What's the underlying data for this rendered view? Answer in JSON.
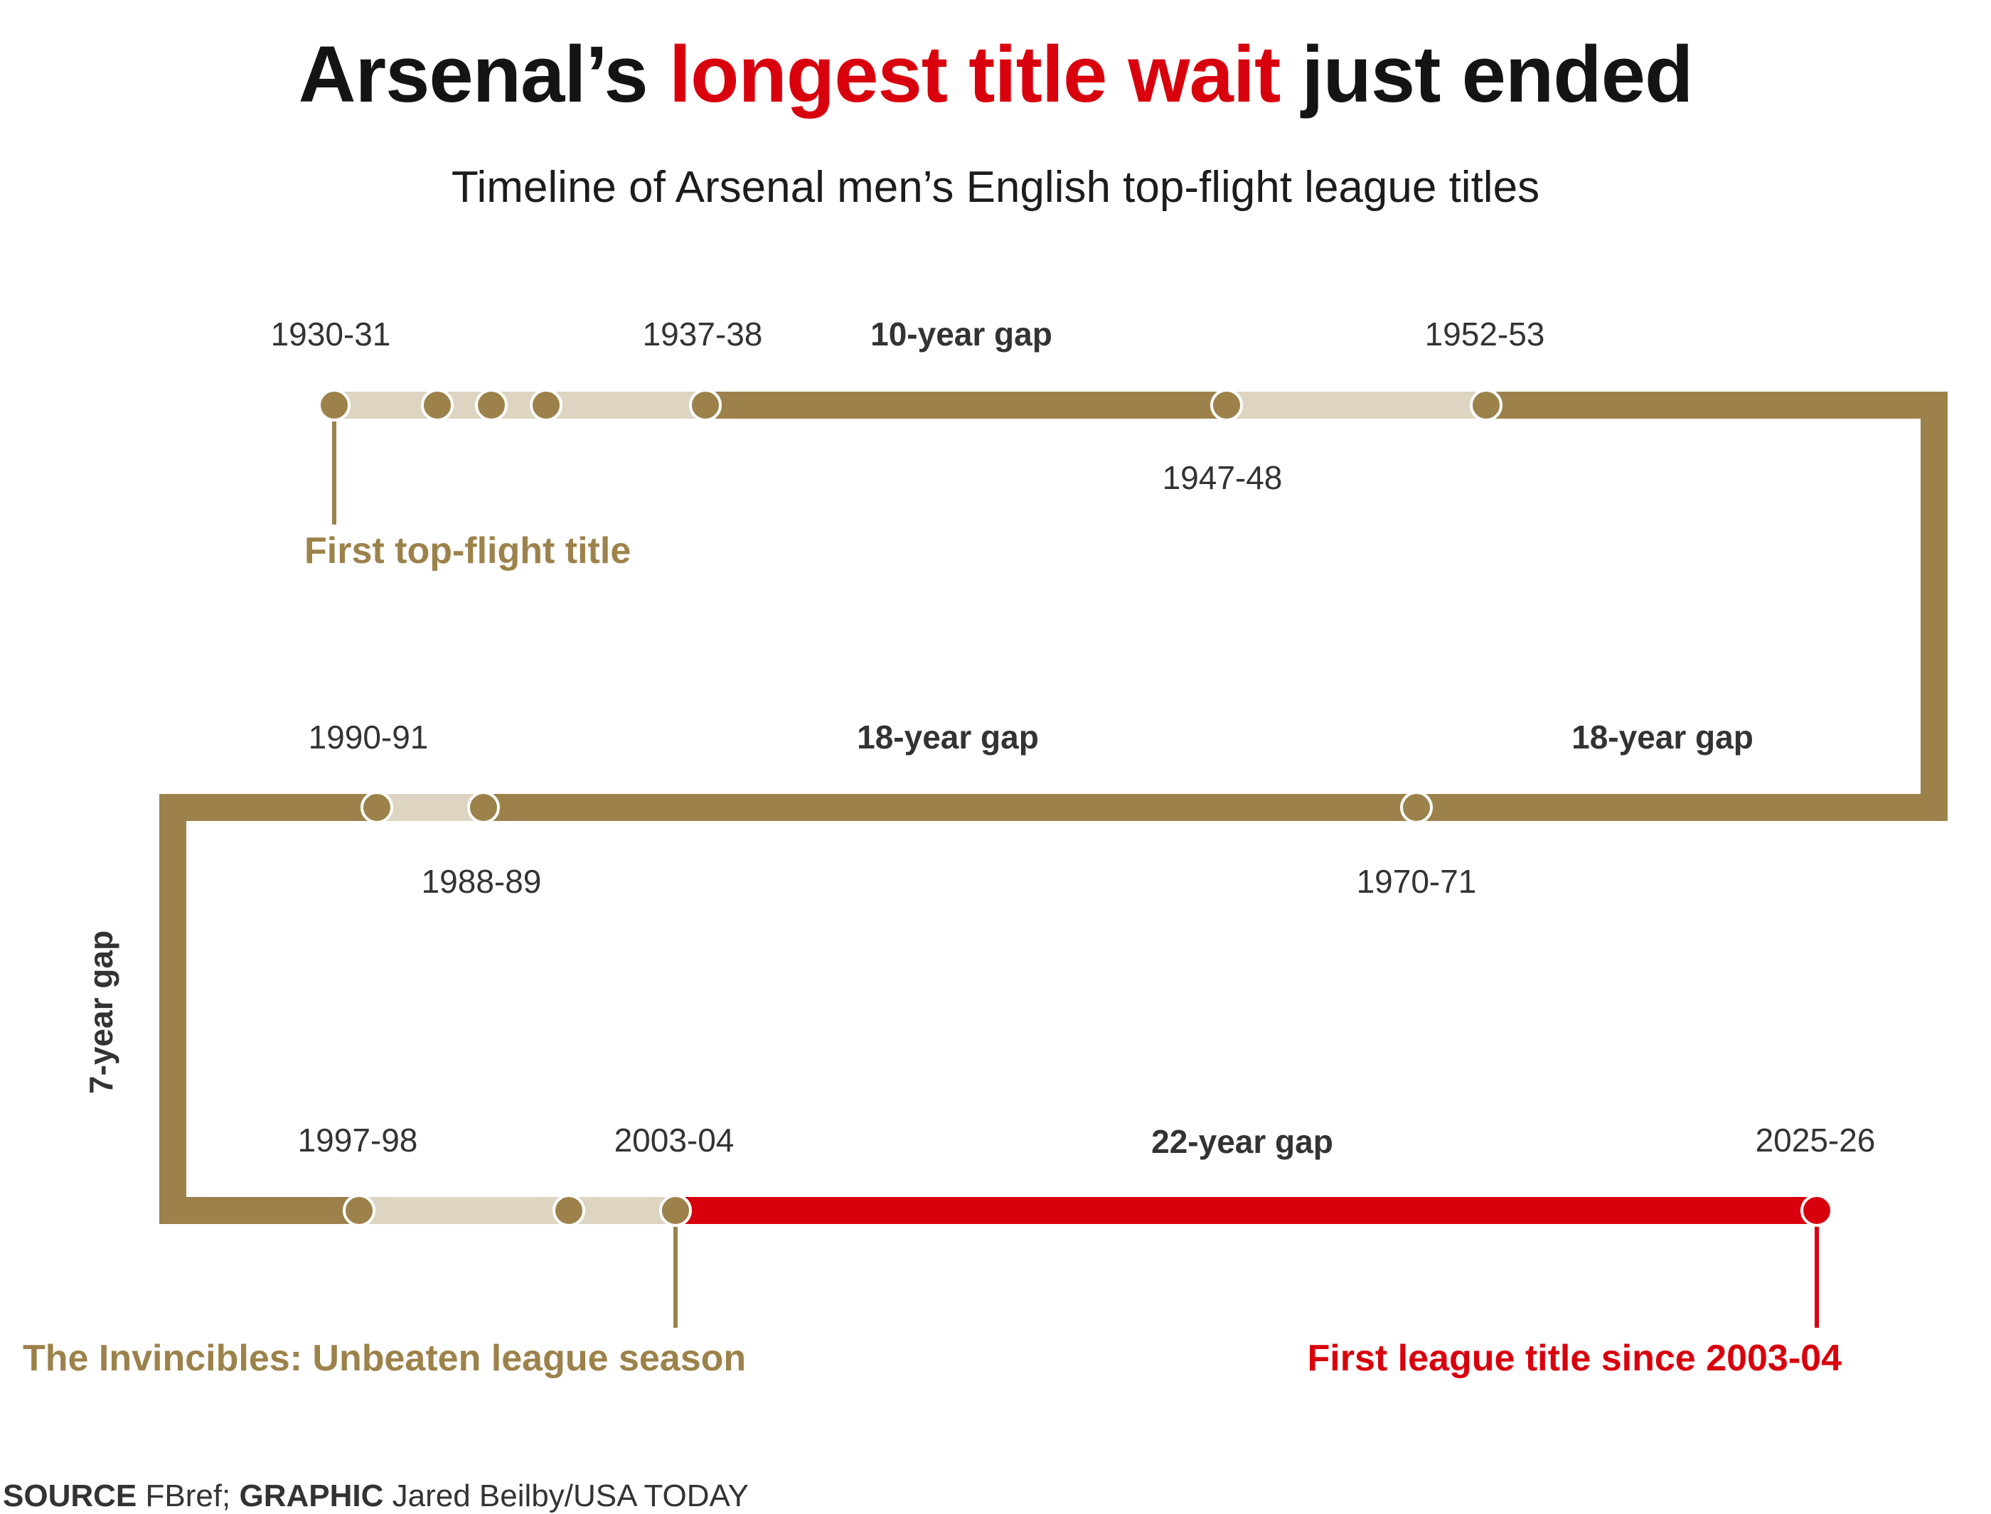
{
  "headline": {
    "part1": "Arsenal’s ",
    "highlight": "longest title wait",
    "part2": " just ended"
  },
  "subtitle": "Timeline of Arsenal men’s English top-flight league titles",
  "colors": {
    "gold": "#9c824a",
    "light": "#ddd5c1",
    "red": "#d9000d",
    "text": "#333333"
  },
  "seasons": {
    "s1930": "1930-31",
    "s1937": "1937-38",
    "s1947": "1947-48",
    "s1952": "1952-53",
    "s1970": "1970-71",
    "s1988": "1988-89",
    "s1990": "1990-91",
    "s1997": "1997-98",
    "s2003": "2003-04",
    "s2025": "2025-26"
  },
  "gaps": {
    "g10": "10-year gap",
    "g18a": "18-year gap",
    "g18b": "18-year gap",
    "g7": "7-year gap",
    "g22": "22-year gap"
  },
  "annotations": {
    "first": "First top-flight title",
    "invincibles": "The Invincibles: Unbeaten league season",
    "latest": "First league title since 2003-04"
  },
  "credit": {
    "source_label": "SOURCE",
    "source": " FBref; ",
    "graphic_label": "GRAPHIC",
    "graphic": " Jared Beilby/USA TODAY"
  }
}
